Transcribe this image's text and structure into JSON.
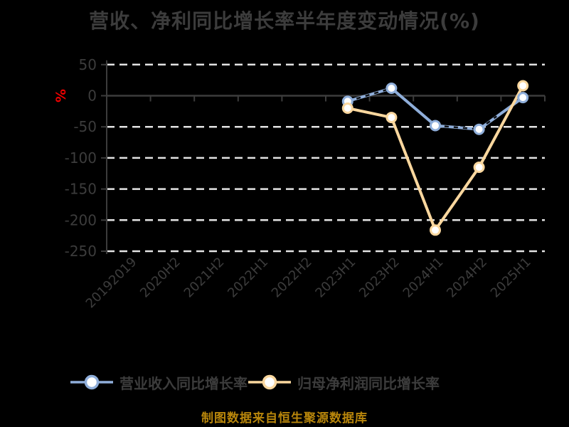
{
  "chart_data": {
    "type": "line",
    "title": "营收、净利同比增长率半年度变动情况(%)",
    "ylabel": "%",
    "ylabel_color": "#EE0000",
    "categories": [
      "20192019",
      "2020H2",
      "2021H2",
      "2022H1",
      "2022H2",
      "2023H1",
      "2023H2",
      "2024H1",
      "2024H2",
      "2025H1"
    ],
    "yticks": [
      50,
      0,
      -50,
      -100,
      -150,
      -200,
      -250
    ],
    "ylim": [
      -250,
      50
    ],
    "grid": "dashed-horizontal-white",
    "legend_position": "bottom",
    "series": [
      {
        "name": "营业收入同比增长率",
        "color": "#8FAEDA",
        "marker": "circle-white-fill",
        "values": [
          null,
          null,
          null,
          null,
          null,
          -9,
          12,
          -48,
          -54,
          -3
        ]
      },
      {
        "name": "归母净利润同比增长率",
        "color": "#FAD79E",
        "marker": "circle-white-fill",
        "values": [
          null,
          null,
          null,
          null,
          null,
          -20,
          -35,
          -216,
          -115,
          16
        ]
      }
    ],
    "overlay_artifact": {
      "description": "faint dark dashed line visible on top of parts of the revenue line",
      "color": "#0E1013",
      "segments": [
        [
          [
            5,
            -9
          ],
          [
            6,
            12
          ]
        ],
        [
          [
            7,
            -48
          ],
          [
            8,
            -54
          ]
        ],
        [
          [
            8,
            -54
          ],
          [
            8.4,
            -33
          ]
        ]
      ]
    },
    "source_note": "制图数据来自恒生聚源数据库",
    "source_note_color": "#B8860B",
    "text_color": "#3C3C3C",
    "axis_color": "#3C3C3C",
    "gridline_color": "#E3E3E3",
    "marker_fill": "#FFFFFF",
    "background": "#000000"
  }
}
